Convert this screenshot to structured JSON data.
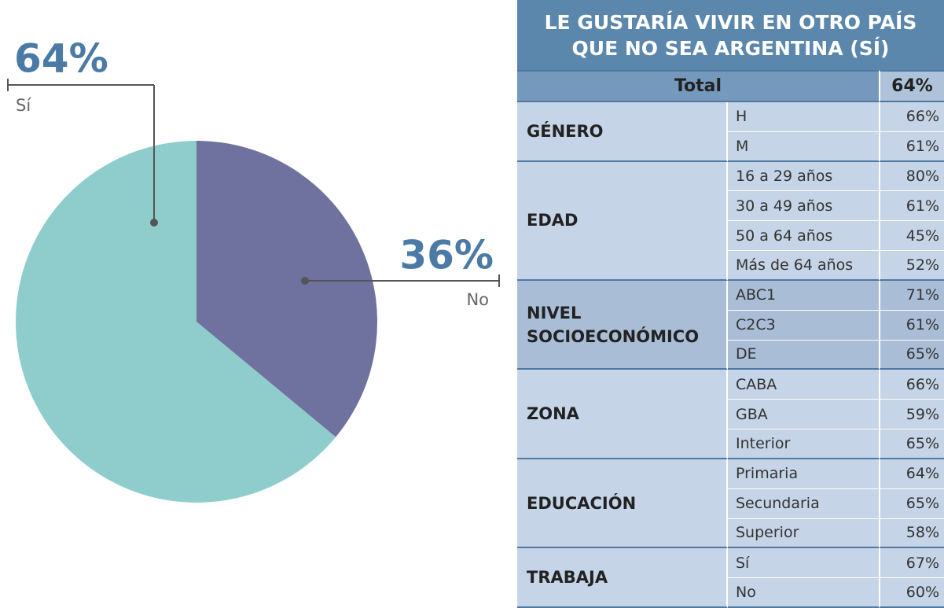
{
  "chart_data": {
    "type": "pie",
    "categories": [
      "Sí",
      "No"
    ],
    "values": [
      64,
      36
    ],
    "value_labels": [
      "64%",
      "36%"
    ],
    "colors": [
      "#8ecdcc",
      "#6f729e"
    ]
  },
  "table": {
    "title": "LE GUSTARÍA VIVIR EN OTRO PAÍS QUE NO SEA ARGENTINA (SÍ)",
    "total_label": "Total",
    "total_value": "64%",
    "groups": [
      {
        "name": "GÉNERO",
        "rows": [
          [
            "H",
            "66%"
          ],
          [
            "M",
            "61%"
          ]
        ]
      },
      {
        "name": "EDAD",
        "rows": [
          [
            "16 a 29 años",
            "80%"
          ],
          [
            "30 a 49 años",
            "61%"
          ],
          [
            "50 a 64 años",
            "45%"
          ],
          [
            "Más de 64 años",
            "52%"
          ]
        ]
      },
      {
        "name": "NIVEL SOCIOECONÓMICO",
        "rows": [
          [
            "ABC1",
            "71%"
          ],
          [
            "C2C3",
            "61%"
          ],
          [
            "DE",
            "65%"
          ]
        ]
      },
      {
        "name": "ZONA",
        "rows": [
          [
            "CABA",
            "66%"
          ],
          [
            "GBA",
            "59%"
          ],
          [
            "Interior",
            "65%"
          ]
        ]
      },
      {
        "name": "EDUCACIÓN",
        "rows": [
          [
            "Primaria",
            "64%"
          ],
          [
            "Secundaria",
            "65%"
          ],
          [
            "Superior",
            "58%"
          ]
        ]
      },
      {
        "name": "TRABAJA",
        "rows": [
          [
            "Sí",
            "67%"
          ],
          [
            "No",
            "60%"
          ]
        ]
      }
    ]
  }
}
